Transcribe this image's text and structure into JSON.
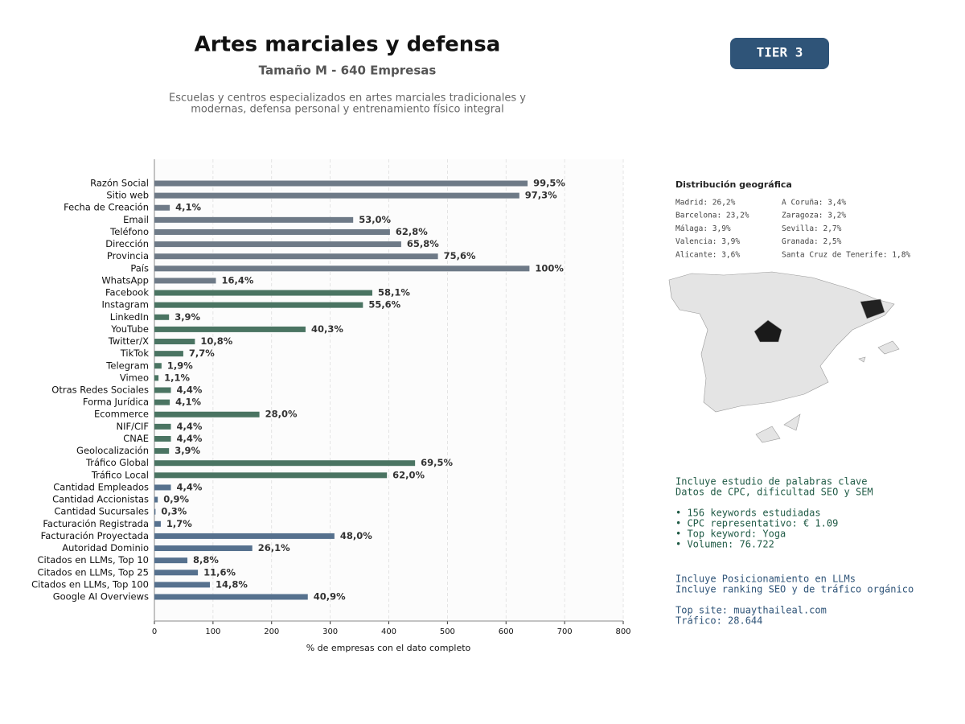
{
  "chart_data": {
    "type": "barh",
    "title": "Artes marciales y defensa",
    "subtitle": "Tamaño M - 640 Empresas",
    "description": [
      "Escuelas y centros especializados en artes marciales tradicionales y",
      "modernas, defensa personal y entrenamiento físico integral"
    ],
    "xlabel": "% de empresas con el dato completo",
    "categories": [
      "Razón Social",
      "Sitio web",
      "Fecha de Creación",
      "Email",
      "Teléfono",
      "Dirección",
      "Provincia",
      "País",
      "WhatsApp",
      "Facebook",
      "Instagram",
      "LinkedIn",
      "YouTube",
      "Twitter/X",
      "TikTok",
      "Telegram",
      "Vimeo",
      "Otras Redes Sociales",
      "Forma Jurídica",
      "Ecommerce",
      "NIF/CIF",
      "CNAE",
      "Geolocalización",
      "Tráfico Global",
      "Tráfico Local",
      "Cantidad Empleados",
      "Cantidad Accionistas",
      "Cantidad Sucursales",
      "Facturación Registrada",
      "Facturación Proyectada",
      "Autoridad Dominio",
      "Citados en LLMs, Top 10",
      "Citados en LLMs, Top 25",
      "Citados en LLMs, Top 100",
      "Google AI Overviews"
    ],
    "values": [
      636.8,
      622.72,
      26.24,
      339.2,
      401.92,
      421.12,
      483.84,
      640,
      104.96,
      371.84,
      355.84,
      24.96,
      257.92,
      69.12,
      49.28,
      12.16,
      7.04,
      28.16,
      26.24,
      179.2,
      28.16,
      28.16,
      24.96,
      444.8,
      396.8,
      28.16,
      5.76,
      1.92,
      10.88,
      307.2,
      167.04,
      56.32,
      74.24,
      94.72,
      261.76
    ],
    "value_labels": [
      "99,5%",
      "97,3%",
      "4,1%",
      "53,0%",
      "62,8%",
      "65,8%",
      "75,6%",
      "100%",
      "16,4%",
      "58,1%",
      "55,6%",
      "3,9%",
      "40,3%",
      "10,8%",
      "7,7%",
      "1,9%",
      "1,1%",
      "4,4%",
      "4,1%",
      "28,0%",
      "4,4%",
      "4,4%",
      "3,9%",
      "69,5%",
      "62,0%",
      "4,4%",
      "0,9%",
      "0,3%",
      "1,7%",
      "48,0%",
      "26,1%",
      "8,8%",
      "11,6%",
      "14,8%",
      "40,9%"
    ],
    "colors": [
      "#6e7a87",
      "#6e7a87",
      "#6e7a87",
      "#6e7a87",
      "#6e7a87",
      "#6e7a87",
      "#6e7a87",
      "#6e7a87",
      "#6e7a87",
      "#4a7462",
      "#4a7462",
      "#4a7462",
      "#4a7462",
      "#4a7462",
      "#4a7462",
      "#4a7462",
      "#4a7462",
      "#4a7462",
      "#4a7462",
      "#4a7462",
      "#4a7462",
      "#4a7462",
      "#4a7462",
      "#4a7462",
      "#4a7462",
      "#56718e",
      "#56718e",
      "#56718e",
      "#56718e",
      "#56718e",
      "#56718e",
      "#56718e",
      "#56718e",
      "#56718e",
      "#56718e"
    ],
    "xlim": [
      0,
      800
    ],
    "xticks": [
      0,
      100,
      200,
      300,
      400,
      500,
      600,
      700,
      800
    ],
    "grid": true
  },
  "badge": "TIER 3",
  "geo": {
    "title": "Distribución geográfica",
    "left": [
      "Madrid: 26,2%",
      "Barcelona: 23,2%",
      "Málaga: 3,9%",
      "Valencia: 3,9%",
      "Alicante: 3,6%"
    ],
    "right": [
      "A Coruña: 3,4%",
      "Zaragoza: 3,2%",
      "Sevilla: 2,7%",
      "Granada: 2,5%",
      "Santa Cruz de Tenerife: 1,8%"
    ]
  },
  "keywords": [
    "Incluye estudio de palabras clave",
    "Datos de CPC, dificultad SEO y SEM",
    "• 156 keywords estudiadas",
    "• CPC representativo: € 1.09",
    "• Top keyword: Yoga",
    "• Volumen: 76.722"
  ],
  "llm": [
    "Incluye Posicionamiento en LLMs",
    "Incluye ranking SEO y de tráfico orgánico",
    "Top site: muaythaileal.com",
    "Tráfico: 28.644"
  ]
}
